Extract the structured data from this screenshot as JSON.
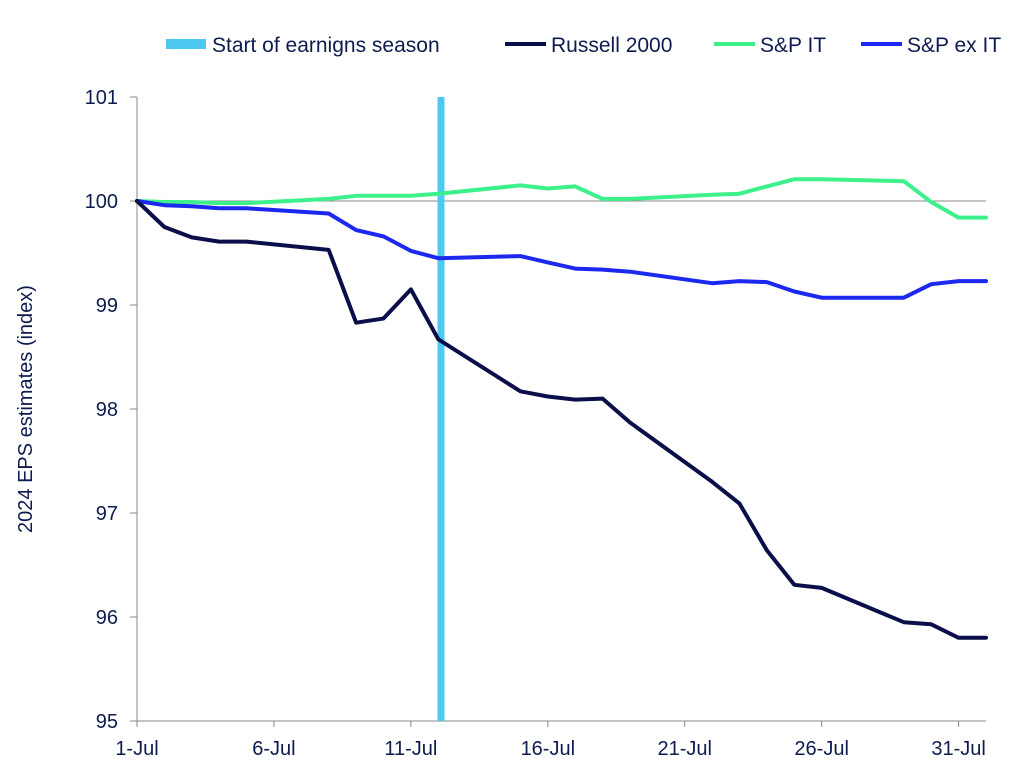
{
  "chart_data": {
    "type": "line",
    "title": "",
    "xlabel": "",
    "ylabel": "2024 EPS estimates (index)",
    "ylim": [
      95,
      101
    ],
    "yticks": [
      "95",
      "96",
      "97",
      "98",
      "99",
      "100",
      "101"
    ],
    "xlim": [
      1,
      32
    ],
    "xticks": [
      {
        "day": 1,
        "label": "1-Jul"
      },
      {
        "day": 6,
        "label": "6-Jul"
      },
      {
        "day": 11,
        "label": "11-Jul"
      },
      {
        "day": 16,
        "label": "16-Jul"
      },
      {
        "day": 21,
        "label": "21-Jul"
      },
      {
        "day": 26,
        "label": "26-Jul"
      },
      {
        "day": 31,
        "label": "31-Jul"
      }
    ],
    "grid": false,
    "legend_position": "top",
    "marker_line": {
      "name": "Start of earnigns season",
      "day": 12.1,
      "color": "#4dc8f0"
    },
    "series": [
      {
        "name": "Russell 2000",
        "color": "#0a0f4a",
        "x": [
          1,
          2,
          3,
          4,
          5,
          8,
          9,
          10,
          11,
          12,
          15,
          16,
          17,
          18,
          19,
          22,
          23,
          24,
          25,
          26,
          29,
          30,
          31,
          32
        ],
        "y": [
          100.0,
          99.75,
          99.65,
          99.61,
          99.61,
          99.53,
          98.83,
          98.87,
          99.15,
          98.67,
          98.17,
          98.12,
          98.09,
          98.1,
          97.87,
          97.3,
          97.09,
          96.64,
          96.31,
          96.28,
          95.95,
          95.93,
          95.8,
          95.8
        ]
      },
      {
        "name": "S&P IT",
        "color": "#3cf08c",
        "x": [
          1,
          2,
          3,
          4,
          5,
          8,
          9,
          10,
          11,
          12,
          15,
          16,
          17,
          18,
          19,
          22,
          23,
          24,
          25,
          26,
          29,
          30,
          31,
          32
        ],
        "y": [
          100.0,
          99.99,
          99.99,
          99.98,
          99.98,
          100.02,
          100.05,
          100.05,
          100.05,
          100.07,
          100.15,
          100.12,
          100.14,
          100.02,
          100.02,
          100.06,
          100.07,
          100.14,
          100.21,
          100.21,
          100.19,
          99.99,
          99.84,
          99.84
        ]
      },
      {
        "name": "S&P ex IT",
        "color": "#1a28f0",
        "x": [
          1,
          2,
          3,
          4,
          5,
          8,
          9,
          10,
          11,
          12,
          15,
          16,
          17,
          18,
          19,
          22,
          23,
          24,
          25,
          26,
          29,
          30,
          31,
          32
        ],
        "y": [
          100.0,
          99.96,
          99.95,
          99.93,
          99.93,
          99.88,
          99.72,
          99.66,
          99.52,
          99.45,
          99.47,
          99.41,
          99.35,
          99.34,
          99.32,
          99.21,
          99.23,
          99.22,
          99.13,
          99.07,
          99.07,
          99.2,
          99.23,
          99.23
        ]
      }
    ]
  }
}
